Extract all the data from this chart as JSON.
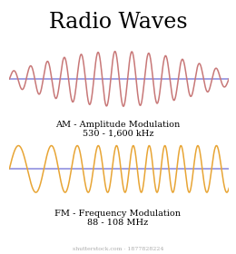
{
  "title": "Radio Waves",
  "title_fontsize": 17,
  "title_font": "serif",
  "bg_color": "#ffffff",
  "baseline_color": "#8888dd",
  "baseline_lw": 1.1,
  "am_color": "#c87878",
  "fm_color": "#e8a535",
  "wave_lw": 1.1,
  "am_label1": "AM - Amplitude Modulation",
  "am_label2": "530 - 1,600 kHz",
  "fm_label1": "FM - Frequency Modulation",
  "fm_label2": "88 - 108 MHz",
  "label_fontsize": 7.0,
  "label_font": "serif",
  "watermark": "shutterstock.com · 1877828224",
  "watermark_fontsize": 4.5
}
